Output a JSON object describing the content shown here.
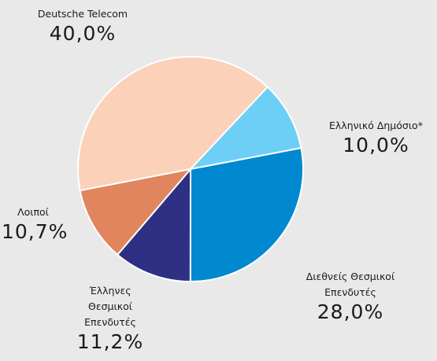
{
  "chart_data": {
    "type": "pie",
    "categories": [
      "Deutsche Telecom",
      "Ελληνικό Δημόσιο*",
      "Διεθνείς Θεσμικοί Επενδυτές",
      "Έλληνες Θεσμικοί Επενδυτές",
      "Λοιποί"
    ],
    "values": [
      40.0,
      10.0,
      28.0,
      11.2,
      10.7
    ],
    "value_labels": [
      "40,0%",
      "10,0%",
      "28,0%",
      "11,2%",
      "10,7%"
    ],
    "colors": [
      "#fcd1b9",
      "#6dcff6",
      "#0088d1",
      "#2e3083",
      "#e0855e"
    ]
  }
}
